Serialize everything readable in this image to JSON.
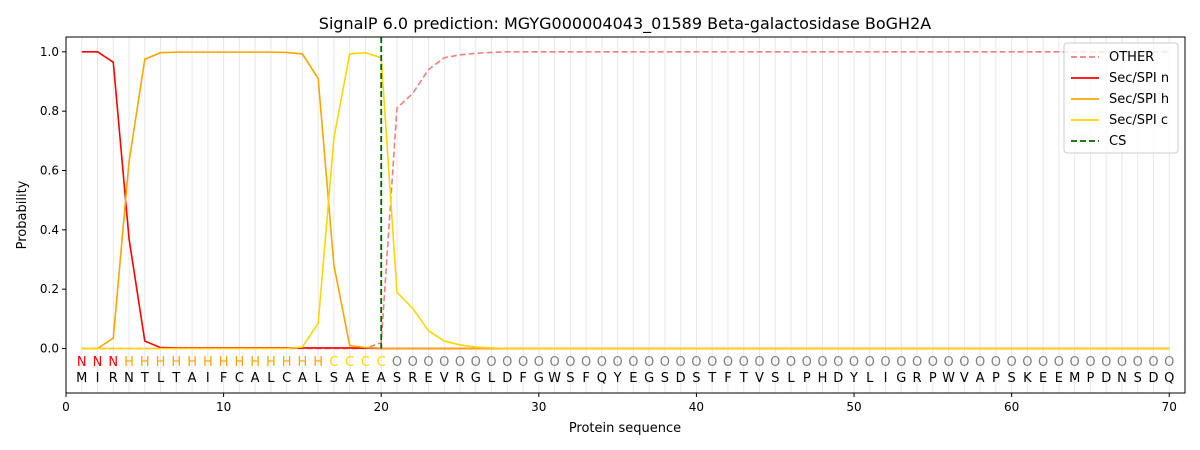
{
  "chart_data": {
    "type": "line",
    "title": "SignalP 6.0 prediction: MGYG000004043_01589 Beta-galactosidase BoGH2A",
    "xlabel": "Protein sequence",
    "ylabel": "Probability",
    "xlim": [
      0,
      71
    ],
    "ylim": [
      -0.15,
      1.05
    ],
    "xticks": [
      0,
      10,
      20,
      30,
      40,
      50,
      60,
      70
    ],
    "yticks": [
      0.0,
      0.2,
      0.4,
      0.6,
      0.8,
      1.0
    ],
    "grid": "vertical lines at each residue",
    "legend_position": "top-right",
    "sequence": [
      "M",
      "I",
      "R",
      "N",
      "T",
      "L",
      "T",
      "A",
      "I",
      "F",
      "C",
      "A",
      "L",
      "C",
      "A",
      "L",
      "S",
      "A",
      "E",
      "A",
      "S",
      "R",
      "E",
      "V",
      "R",
      "G",
      "L",
      "D",
      "F",
      "G",
      "W",
      "S",
      "F",
      "Q",
      "Y",
      "E",
      "G",
      "S",
      "D",
      "S",
      "T",
      "F",
      "T",
      "V",
      "S",
      "L",
      "P",
      "H",
      "D",
      "Y",
      "L",
      "I",
      "G",
      "R",
      "P",
      "W",
      "V",
      "A",
      "P",
      "S",
      "K",
      "E",
      "E",
      "M",
      "P",
      "D",
      "N",
      "S",
      "D",
      "Q"
    ],
    "labels": [
      "N",
      "N",
      "N",
      "H",
      "H",
      "H",
      "H",
      "H",
      "H",
      "H",
      "H",
      "H",
      "H",
      "H",
      "H",
      "H",
      "C",
      "C",
      "C",
      "C",
      "O",
      "O",
      "O",
      "O",
      "O",
      "O",
      "O",
      "O",
      "O",
      "O",
      "O",
      "O",
      "O",
      "O",
      "O",
      "O",
      "O",
      "O",
      "O",
      "O",
      "O",
      "O",
      "O",
      "O",
      "O",
      "O",
      "O",
      "O",
      "O",
      "O",
      "O",
      "O",
      "O",
      "O",
      "O",
      "O",
      "O",
      "O",
      "O",
      "O",
      "O",
      "O",
      "O",
      "O",
      "O",
      "O",
      "O",
      "O",
      "O",
      "O"
    ],
    "label_colors": {
      "N": "#ff0000",
      "H": "#ffa500",
      "C": "#ffd700",
      "O": "#808080"
    },
    "cleavage_site": 20,
    "series": [
      {
        "name": "OTHER",
        "color": "#f08080",
        "dash": true,
        "values": [
          0,
          0,
          0,
          0,
          0,
          0,
          0,
          0,
          0,
          0,
          0,
          0,
          0,
          0,
          0,
          0,
          0,
          0,
          0,
          0.02,
          0.81,
          0.86,
          0.94,
          0.98,
          0.99,
          0.995,
          0.998,
          1,
          1,
          1,
          1,
          1,
          1,
          1,
          1,
          1,
          1,
          1,
          1,
          1,
          1,
          1,
          1,
          1,
          1,
          1,
          1,
          1,
          1,
          1,
          1,
          1,
          1,
          1,
          1,
          1,
          1,
          1,
          1,
          1,
          1,
          1,
          1,
          1,
          1,
          1,
          1,
          1,
          1,
          1
        ]
      },
      {
        "name": "Sec/SPI n",
        "color": "#ff0000",
        "dash": false,
        "values": [
          1.0,
          1.0,
          0.965,
          0.37,
          0.025,
          0.003,
          0.002,
          0.002,
          0.002,
          0.002,
          0.002,
          0.002,
          0.002,
          0.002,
          0.002,
          0.002,
          0.002,
          0.002,
          0.001,
          0,
          0,
          0,
          0,
          0,
          0,
          0,
          0,
          0,
          0,
          0,
          0,
          0,
          0,
          0,
          0,
          0,
          0,
          0,
          0,
          0,
          0,
          0,
          0,
          0,
          0,
          0,
          0,
          0,
          0,
          0,
          0,
          0,
          0,
          0,
          0,
          0,
          0,
          0,
          0,
          0,
          0,
          0,
          0,
          0,
          0,
          0,
          0,
          0,
          0,
          0
        ]
      },
      {
        "name": "Sec/SPI h",
        "color": "#ffa500",
        "dash": false,
        "values": [
          0,
          0,
          0.035,
          0.63,
          0.975,
          0.997,
          0.999,
          0.999,
          0.999,
          0.999,
          0.999,
          0.999,
          0.999,
          0.998,
          0.993,
          0.91,
          0.28,
          0.01,
          0.003,
          0.001,
          0,
          0,
          0,
          0,
          0,
          0,
          0,
          0,
          0,
          0,
          0,
          0,
          0,
          0,
          0,
          0,
          0,
          0,
          0,
          0,
          0,
          0,
          0,
          0,
          0,
          0,
          0,
          0,
          0,
          0,
          0,
          0,
          0,
          0,
          0,
          0,
          0,
          0,
          0,
          0,
          0,
          0,
          0,
          0,
          0,
          0,
          0,
          0,
          0,
          0
        ]
      },
      {
        "name": "Sec/SPI c",
        "color": "#ffd700",
        "dash": false,
        "values": [
          0,
          0,
          0,
          0,
          0,
          0,
          0,
          0,
          0,
          0,
          0,
          0,
          0,
          0,
          0.005,
          0.085,
          0.71,
          0.993,
          0.997,
          0.98,
          0.19,
          0.135,
          0.06,
          0.025,
          0.012,
          0.005,
          0.002,
          0,
          0,
          0,
          0,
          0,
          0,
          0,
          0,
          0,
          0,
          0,
          0,
          0,
          0,
          0,
          0,
          0,
          0,
          0,
          0,
          0,
          0,
          0,
          0,
          0,
          0,
          0,
          0,
          0,
          0,
          0,
          0,
          0,
          0,
          0,
          0,
          0,
          0,
          0,
          0,
          0,
          0,
          0
        ]
      }
    ],
    "cs_legend": {
      "name": "CS",
      "color": "#006400"
    }
  }
}
